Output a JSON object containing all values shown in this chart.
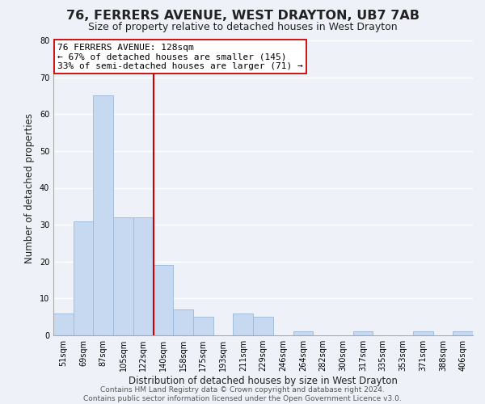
{
  "title": "76, FERRERS AVENUE, WEST DRAYTON, UB7 7AB",
  "subtitle": "Size of property relative to detached houses in West Drayton",
  "xlabel": "Distribution of detached houses by size in West Drayton",
  "ylabel": "Number of detached properties",
  "footer_line1": "Contains HM Land Registry data © Crown copyright and database right 2024.",
  "footer_line2": "Contains public sector information licensed under the Open Government Licence v3.0.",
  "bar_labels": [
    "51sqm",
    "69sqm",
    "87sqm",
    "105sqm",
    "122sqm",
    "140sqm",
    "158sqm",
    "175sqm",
    "193sqm",
    "211sqm",
    "229sqm",
    "246sqm",
    "264sqm",
    "282sqm",
    "300sqm",
    "317sqm",
    "335sqm",
    "353sqm",
    "371sqm",
    "388sqm",
    "406sqm"
  ],
  "bar_values": [
    6,
    31,
    65,
    32,
    32,
    19,
    7,
    5,
    0,
    6,
    5,
    0,
    1,
    0,
    0,
    1,
    0,
    0,
    1,
    0,
    1
  ],
  "bar_color": "#c6d9f0",
  "bar_edge_color": "#9ab8d8",
  "ylim": [
    0,
    80
  ],
  "yticks": [
    0,
    10,
    20,
    30,
    40,
    50,
    60,
    70,
    80
  ],
  "vline_x": 4.5,
  "vline_color": "#cc0000",
  "annotation_title": "76 FERRERS AVENUE: 128sqm",
  "annotation_line1": "← 67% of detached houses are smaller (145)",
  "annotation_line2": "33% of semi-detached houses are larger (71) →",
  "annotation_box_color": "#ffffff",
  "annotation_box_edge_color": "#cc0000",
  "background_color": "#eef2f8",
  "plot_bg_color": "#eef2f8",
  "grid_color": "#ffffff",
  "title_fontsize": 11.5,
  "subtitle_fontsize": 9,
  "axis_label_fontsize": 8.5,
  "tick_fontsize": 7,
  "annotation_title_fontsize": 9,
  "annotation_fontsize": 8,
  "footer_fontsize": 6.5
}
